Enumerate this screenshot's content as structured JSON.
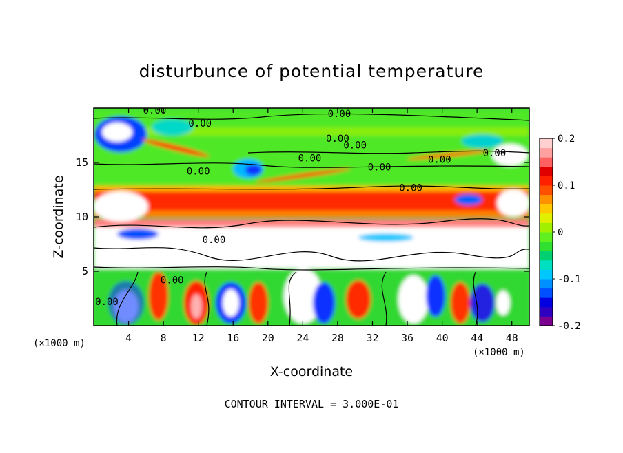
{
  "title": "disturbunce of potential temperature",
  "contour_interval": "CONTOUR INTERVAL = 3.000E-01",
  "x_unit": "(×1000 m)",
  "z_unit": "(×1000 m)",
  "chart_data": {
    "type": "heatmap",
    "title": "disturbunce of potential temperature",
    "xlabel": "X-coordinate",
    "ylabel": "Z-coordinate",
    "x_unit": "(×1000 m)",
    "z_unit": "(×1000 m)",
    "xlim": [
      0,
      50
    ],
    "ylim": [
      0,
      20
    ],
    "x_ticks": [
      4,
      8,
      12,
      16,
      20,
      24,
      28,
      32,
      36,
      40,
      44,
      48
    ],
    "y_ticks": [
      5,
      10,
      15
    ],
    "colorbar": {
      "min": -0.2,
      "max": 0.2,
      "ticks": [
        -0.2,
        -0.1,
        0,
        0.1,
        0.2
      ],
      "tick_labels": [
        "-0.2",
        "-0.1",
        "0",
        "0.1",
        "0.2"
      ],
      "colors": [
        "#7b0090",
        "#3000c0",
        "#0000e0",
        "#0050ff",
        "#0090ff",
        "#00c8ff",
        "#00e0c0",
        "#00d070",
        "#30e030",
        "#60f020",
        "#a0f000",
        "#e0f000",
        "#ffc800",
        "#ff9000",
        "#ff5000",
        "#ff2000",
        "#e00000",
        "#ff6060",
        "#ffa0a0",
        "#ffd0d0"
      ]
    },
    "contour_interval": 0.3,
    "contour_labels": [
      {
        "text": "0.00",
        "x": 7.0,
        "z": 19.8
      },
      {
        "text": "0.00",
        "x": 12.2,
        "z": 18.6
      },
      {
        "text": "0.00",
        "x": 28.2,
        "z": 19.5
      },
      {
        "text": "0.00",
        "x": 28.0,
        "z": 17.2
      },
      {
        "text": "0.00",
        "x": 30.0,
        "z": 16.6
      },
      {
        "text": "0.00",
        "x": 24.8,
        "z": 15.4
      },
      {
        "text": "0.00",
        "x": 32.8,
        "z": 14.6
      },
      {
        "text": "0.00",
        "x": 39.7,
        "z": 15.3
      },
      {
        "text": "0.00",
        "x": 46.0,
        "z": 15.9
      },
      {
        "text": "0.00",
        "x": 12.0,
        "z": 14.2
      },
      {
        "text": "0.00",
        "x": 36.4,
        "z": 12.7
      },
      {
        "text": "0.00",
        "x": 13.8,
        "z": 7.9
      },
      {
        "text": "0.00",
        "x": 9.0,
        "z": 4.2
      },
      {
        "text": "0.00",
        "x": 1.5,
        "z": 2.2
      }
    ]
  }
}
